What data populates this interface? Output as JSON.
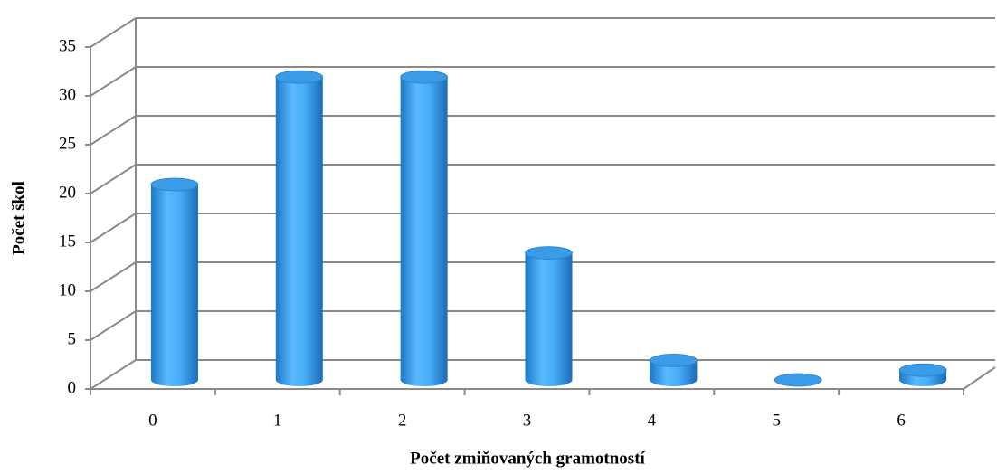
{
  "chart_data": {
    "type": "bar",
    "x_label": "Počet zmiňovaných gramotností",
    "y_label": "Počet škol",
    "categories": [
      "0",
      "1",
      "2",
      "3",
      "4",
      "5",
      "6"
    ],
    "values": [
      20,
      31,
      31,
      13,
      2,
      0,
      1
    ],
    "color": "#3fa4f0",
    "ylim": [
      0,
      35
    ],
    "yticks": [
      0,
      5,
      10,
      15,
      20,
      25,
      30,
      35
    ],
    "grid": true
  }
}
